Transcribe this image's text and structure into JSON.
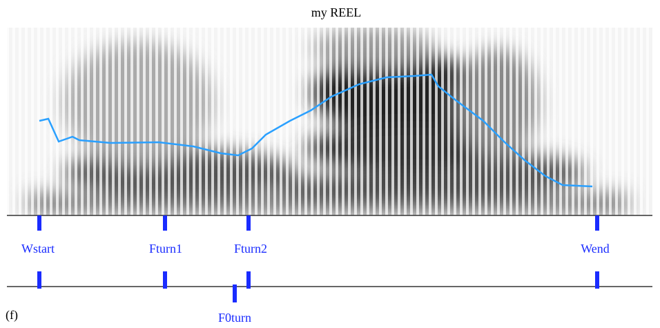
{
  "title": "my REEL",
  "tier1": {
    "labels": [
      "Wstart",
      "Fturn1",
      "Fturn2",
      "Wend"
    ]
  },
  "tier2": {
    "labels": [
      "F0turn"
    ]
  },
  "panel_label": "(f)"
}
